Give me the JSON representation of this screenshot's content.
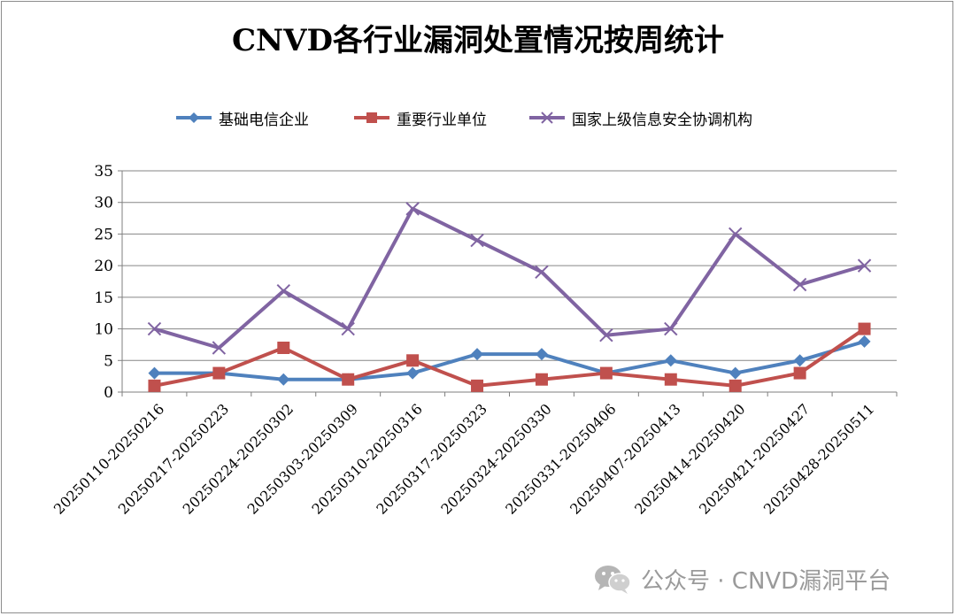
{
  "chart_data": {
    "type": "line",
    "title": "CNVD各行业漏洞处置情况按周统计",
    "categories": [
      "20250110-20250216",
      "20250217-20250223",
      "20250224-20250302",
      "20250303-20250309",
      "20250310-20250316",
      "20250317-20250323",
      "20250324-20250330",
      "20250331-20250406",
      "20250407-20250413",
      "20250414-20250420",
      "20250421-20250427",
      "20250428-20250511"
    ],
    "series": [
      {
        "name": "基础电信企业",
        "color": "#4f81bd",
        "marker": "diamond",
        "values": [
          3,
          3,
          2,
          2,
          3,
          6,
          6,
          3,
          5,
          3,
          5,
          8
        ]
      },
      {
        "name": "重要行业单位",
        "color": "#c0504d",
        "marker": "square",
        "values": [
          1,
          3,
          7,
          2,
          5,
          1,
          2,
          3,
          2,
          1,
          3,
          10
        ]
      },
      {
        "name": "国家上级信息安全协调机构",
        "color": "#8064a2",
        "marker": "x",
        "values": [
          10,
          7,
          16,
          10,
          29,
          24,
          19,
          9,
          10,
          25,
          17,
          20
        ]
      }
    ],
    "ylim": [
      0,
      35
    ],
    "yticks": [
      0,
      5,
      10,
      15,
      20,
      25,
      30,
      35
    ],
    "grid": true,
    "legend_position": "top"
  },
  "watermark": {
    "text": "公众号 · CNVD漏洞平台",
    "icon": "wechat-icon"
  }
}
